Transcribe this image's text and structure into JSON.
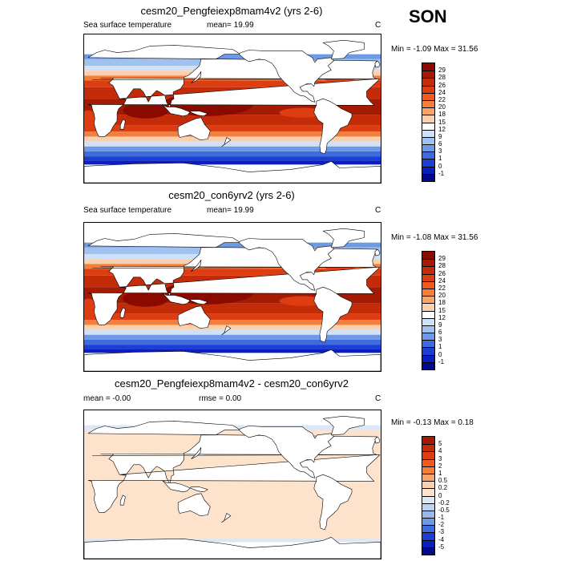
{
  "season": "SON",
  "panels": [
    {
      "title": "cesm20_Pengfeiexp8mam4v2 (yrs 2-6)",
      "left_label": "Sea surface temperature",
      "mid_label": "mean=  19.99",
      "unit": "C",
      "minmax": "Min =  -1.09 Max =  31.56",
      "type": "sst",
      "colorbar": {
        "labels": [
          "29",
          "28",
          "26",
          "24",
          "22",
          "20",
          "18",
          "15",
          "12",
          "9",
          "6",
          "3",
          "1",
          "0",
          "-1"
        ],
        "colors": [
          "#8b0a00",
          "#a51a03",
          "#c42b08",
          "#dd3d10",
          "#ee5a1f",
          "#f47e3c",
          "#f8a56d",
          "#fbd0ae",
          "#ffffff",
          "#cfe0f7",
          "#a0c2ef",
          "#6e9ae5",
          "#3f6cdd",
          "#1b3ed3",
          "#0a1ec2",
          "#000a8a"
        ]
      }
    },
    {
      "title": "cesm20_con6yrv2 (yrs 2-6)",
      "left_label": "Sea surface temperature",
      "mid_label": "mean=  19.99",
      "unit": "C",
      "minmax": "Min =  -1.08 Max =  31.56",
      "type": "sst",
      "colorbar": {
        "labels": [
          "29",
          "28",
          "26",
          "24",
          "22",
          "20",
          "18",
          "15",
          "12",
          "9",
          "6",
          "3",
          "1",
          "0",
          "-1"
        ],
        "colors": [
          "#8b0a00",
          "#a51a03",
          "#c42b08",
          "#dd3d10",
          "#ee5a1f",
          "#f47e3c",
          "#f8a56d",
          "#fbd0ae",
          "#ffffff",
          "#cfe0f7",
          "#a0c2ef",
          "#6e9ae5",
          "#3f6cdd",
          "#1b3ed3",
          "#0a1ec2",
          "#000a8a"
        ]
      }
    },
    {
      "title": "cesm20_Pengfeiexp8mam4v2 - cesm20_con6yrv2",
      "left_label": "mean =  -0.00",
      "mid_label": "rmse =   0.00",
      "unit": "C",
      "minmax": "Min =  -0.13 Max =   0.18",
      "type": "diff",
      "colorbar": {
        "labels": [
          "5",
          "4",
          "3",
          "2",
          "1",
          "0.5",
          "0.2",
          "0",
          "-0.2",
          "-0.5",
          "-1",
          "-2",
          "-3",
          "-4",
          "-5"
        ],
        "colors": [
          "#a51a03",
          "#c42b08",
          "#dd3d10",
          "#ee5a1f",
          "#f47e3c",
          "#f8a56d",
          "#fbd0ae",
          "#fde3cc",
          "#dce8f8",
          "#bdd4f3",
          "#9ab8ec",
          "#6e9ae5",
          "#3f6cdd",
          "#1b3ed3",
          "#0a1ec2",
          "#000a8a"
        ]
      }
    }
  ]
}
